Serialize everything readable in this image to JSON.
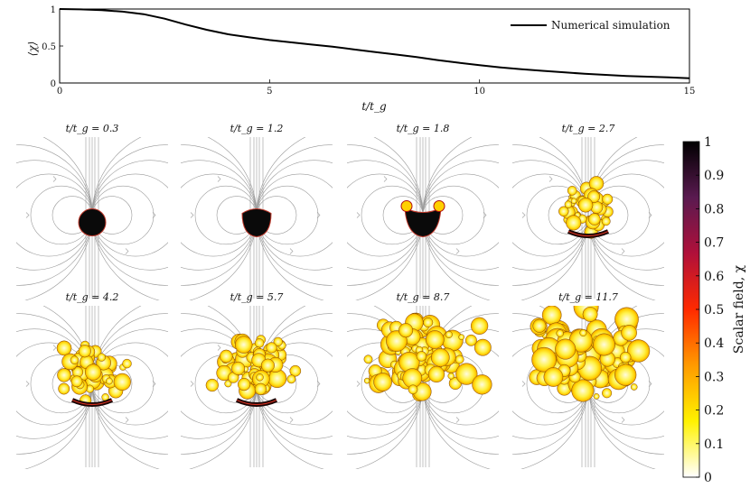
{
  "chart_data": {
    "type": "line",
    "series": [
      {
        "name": "Numerical simulation",
        "x": [
          0,
          0.5,
          1,
          1.5,
          2,
          2.5,
          3,
          3.5,
          4,
          4.5,
          5,
          5.5,
          6,
          6.5,
          7,
          7.5,
          8,
          8.5,
          9,
          9.5,
          10,
          10.5,
          11,
          11.5,
          12,
          12.5,
          13,
          13.5,
          14,
          14.5,
          15
        ],
        "values": [
          1.0,
          0.995,
          0.985,
          0.965,
          0.93,
          0.87,
          0.79,
          0.72,
          0.66,
          0.62,
          0.58,
          0.55,
          0.52,
          0.49,
          0.455,
          0.42,
          0.385,
          0.35,
          0.31,
          0.275,
          0.24,
          0.21,
          0.185,
          0.165,
          0.145,
          0.125,
          0.11,
          0.095,
          0.085,
          0.075,
          0.065
        ]
      }
    ],
    "xlabel": "t/t_g",
    "ylabel": "⟨χ⟩",
    "xlim": [
      0,
      15
    ],
    "ylim": [
      0,
      1
    ],
    "xticks": [
      "0",
      "5",
      "10",
      "15"
    ],
    "yticks": [
      "0",
      "0.5",
      "1"
    ],
    "legend_position": "top-right",
    "panels": [
      {
        "time": 0.3,
        "label": "t/t_g = 0.3"
      },
      {
        "time": 1.2,
        "label": "t/t_g = 1.2"
      },
      {
        "time": 1.8,
        "label": "t/t_g = 1.8"
      },
      {
        "time": 2.7,
        "label": "t/t_g = 2.7"
      },
      {
        "time": 4.2,
        "label": "t/t_g = 4.2"
      },
      {
        "time": 5.7,
        "label": "t/t_g = 5.7"
      },
      {
        "time": 8.7,
        "label": "t/t_g = 8.7"
      },
      {
        "time": 11.7,
        "label": "t/t_g = 11.7"
      }
    ],
    "colorbar": {
      "title": "Scalar field, χ",
      "range": [
        0,
        1
      ],
      "ticks": [
        "0",
        "0.1",
        "0.2",
        "0.3",
        "0.4",
        "0.5",
        "0.6",
        "0.7",
        "0.8",
        "0.9",
        "1"
      ],
      "colors": [
        "#ffffff",
        "#fff200",
        "#ff9a00",
        "#ff2a00",
        "#b0103a",
        "#5a1a50",
        "#000000"
      ]
    }
  }
}
